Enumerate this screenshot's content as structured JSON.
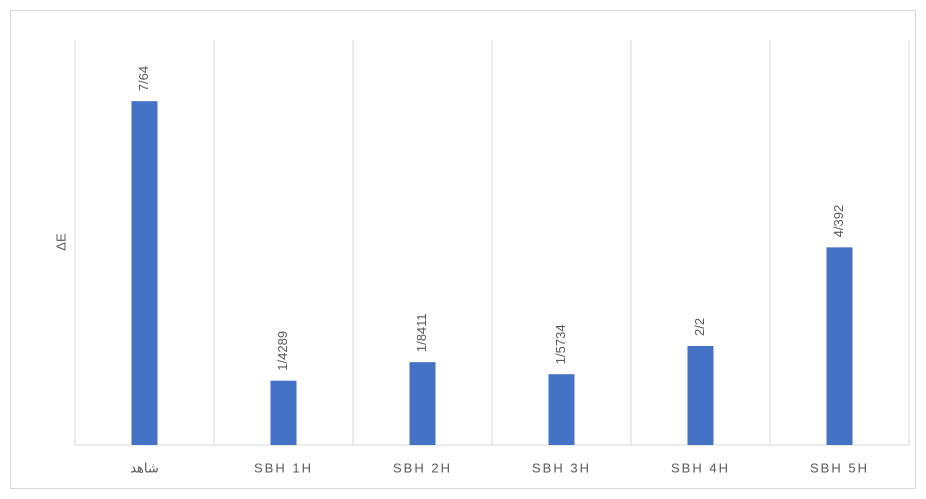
{
  "chart_data": {
    "type": "bar",
    "y_label": "ΔE",
    "categories": [
      "شاهد",
      "SBH 1H",
      "SBH 2H",
      "SBH 3H",
      "SBH 4H",
      "SBH 5H"
    ],
    "values": [
      7.64,
      1.4289,
      1.8411,
      1.5734,
      2.2,
      4.392
    ],
    "value_labels": [
      "7/64",
      "1/4289",
      "1/8411",
      "1/5734",
      "2/2",
      "4/392"
    ],
    "color": "#4472c4",
    "ylim": [
      0,
      9
    ]
  }
}
